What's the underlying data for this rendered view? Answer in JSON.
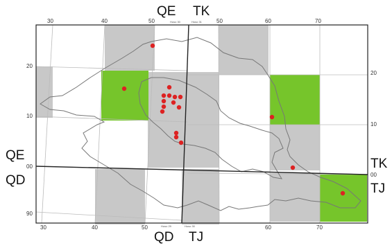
{
  "zones": {
    "top_left": "QE",
    "top_right": "TK",
    "left_upper": "QE",
    "left_lower": "QD",
    "right_upper": "TK",
    "right_lower": "TJ",
    "bottom_left": "QD",
    "bottom_right": "TJ"
  },
  "zone_notes": {
    "top_left": "Huso 30",
    "top_right": "Huso 31",
    "bottom_left": "Huso 29",
    "bottom_right": "Huso 30"
  },
  "ticks": {
    "top": [
      "30",
      "40",
      "50",
      "50",
      "60",
      "70"
    ],
    "bottom": [
      "30",
      "40",
      "50",
      "60",
      "70"
    ],
    "left": [
      "20",
      "10",
      "00",
      "90"
    ],
    "right": [
      "20",
      "10",
      "00"
    ]
  },
  "colors": {
    "gray_square": "#c8c8c8",
    "green_square": "#76c52b",
    "point": "#dd2222",
    "outline": "#777777",
    "grid": "#bbbbbb",
    "frame": "#222222"
  },
  "points_count_visible": 15
}
